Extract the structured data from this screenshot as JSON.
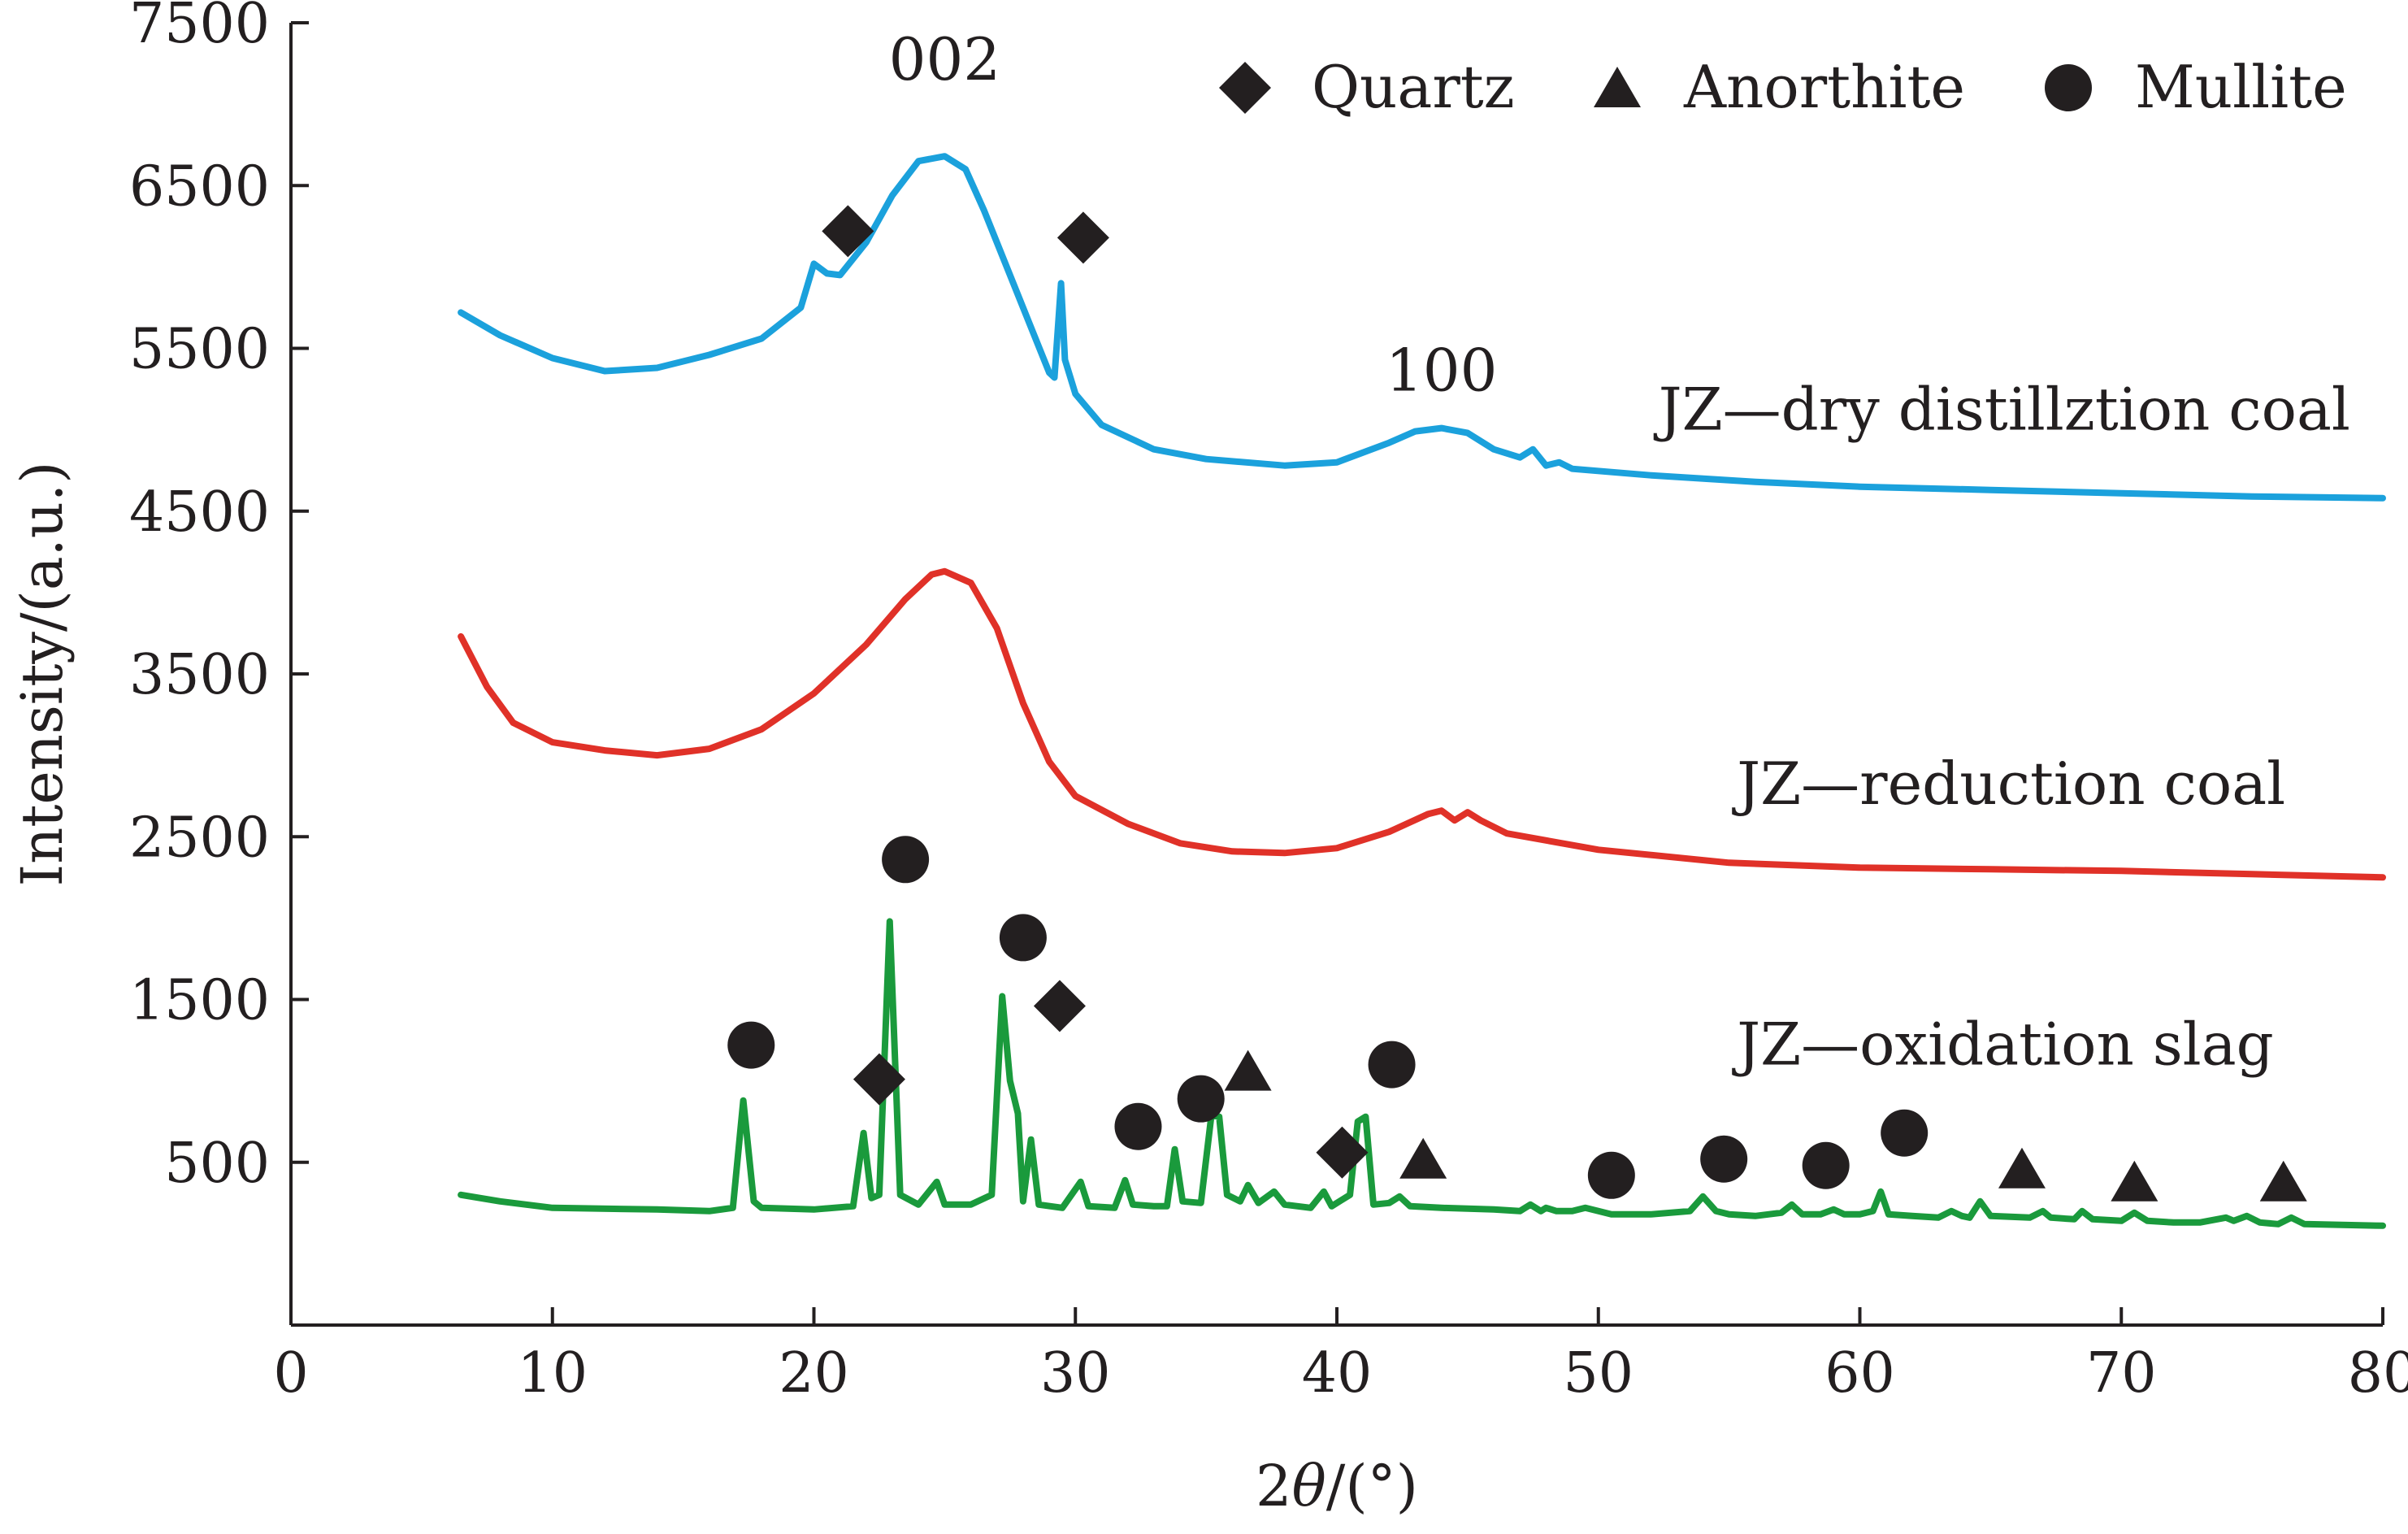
{
  "chart_data": {
    "type": "line",
    "title": "",
    "xlabel": "2θ/(°)",
    "ylabel": "Intensity/(a.u.)",
    "xlim": [
      0,
      80
    ],
    "ylim": [
      -500,
      7500
    ],
    "x_ticks": [
      0,
      10,
      20,
      30,
      40,
      50,
      60,
      70,
      80
    ],
    "y_ticks": [
      500,
      1500,
      2500,
      3500,
      4500,
      5500,
      6500,
      7500
    ],
    "grid": false,
    "legend": {
      "position": "top-right",
      "entries": [
        {
          "marker": "diamond",
          "label": "Quartz"
        },
        {
          "marker": "triangle",
          "label": "Anorthite"
        },
        {
          "marker": "circle",
          "label": "Mullite"
        }
      ]
    },
    "peak_labels": [
      {
        "text": "002",
        "x": 25,
        "y": 7150
      },
      {
        "text": "100",
        "x": 44,
        "y": 5240
      }
    ],
    "series": [
      {
        "name": "JZ—dry distillztion coal",
        "label": "JZ—dry distillztion coal",
        "label_pos": {
          "x": 52.3,
          "y": 5000
        },
        "color": "#1ba1dc",
        "points": [
          [
            6.5,
            5720
          ],
          [
            8,
            5580
          ],
          [
            10,
            5440
          ],
          [
            12,
            5360
          ],
          [
            14,
            5380
          ],
          [
            16,
            5460
          ],
          [
            18,
            5560
          ],
          [
            19.5,
            5750
          ],
          [
            20,
            6020
          ],
          [
            20.5,
            5960
          ],
          [
            21,
            5950
          ],
          [
            22,
            6150
          ],
          [
            23,
            6440
          ],
          [
            24,
            6650
          ],
          [
            25,
            6680
          ],
          [
            25.8,
            6600
          ],
          [
            26.5,
            6350
          ],
          [
            27.5,
            5950
          ],
          [
            28.5,
            5550
          ],
          [
            29,
            5350
          ],
          [
            29.2,
            5320
          ],
          [
            29.45,
            5900
          ],
          [
            29.6,
            5430
          ],
          [
            30,
            5220
          ],
          [
            31,
            5030
          ],
          [
            33,
            4880
          ],
          [
            35,
            4820
          ],
          [
            38,
            4780
          ],
          [
            40,
            4800
          ],
          [
            42,
            4920
          ],
          [
            43,
            4990
          ],
          [
            44,
            5010
          ],
          [
            45,
            4980
          ],
          [
            46,
            4880
          ],
          [
            47,
            4830
          ],
          [
            47.5,
            4880
          ],
          [
            48,
            4780
          ],
          [
            48.5,
            4800
          ],
          [
            49,
            4760
          ],
          [
            52,
            4720
          ],
          [
            56,
            4680
          ],
          [
            60,
            4650
          ],
          [
            65,
            4630
          ],
          [
            70,
            4610
          ],
          [
            75,
            4590
          ],
          [
            80,
            4580
          ]
        ],
        "markers": [
          {
            "type": "diamond",
            "x": 21.3,
            "y": 6220
          },
          {
            "type": "diamond",
            "x": 30.3,
            "y": 6180
          }
        ]
      },
      {
        "name": "JZ—reduction coal",
        "label": "JZ—reduction coal",
        "label_pos": {
          "x": 55.3,
          "y": 2700
        },
        "color": "#e03128",
        "points": [
          [
            6.5,
            3730
          ],
          [
            7.5,
            3420
          ],
          [
            8.5,
            3200
          ],
          [
            10,
            3080
          ],
          [
            12,
            3030
          ],
          [
            14,
            3000
          ],
          [
            16,
            3040
          ],
          [
            18,
            3160
          ],
          [
            20,
            3380
          ],
          [
            22,
            3680
          ],
          [
            23.5,
            3960
          ],
          [
            24.5,
            4110
          ],
          [
            25,
            4130
          ],
          [
            26,
            4060
          ],
          [
            27,
            3780
          ],
          [
            28,
            3320
          ],
          [
            29,
            2960
          ],
          [
            30,
            2750
          ],
          [
            32,
            2580
          ],
          [
            34,
            2460
          ],
          [
            36,
            2410
          ],
          [
            38,
            2400
          ],
          [
            40,
            2430
          ],
          [
            42,
            2530
          ],
          [
            43.5,
            2640
          ],
          [
            44,
            2660
          ],
          [
            44.5,
            2600
          ],
          [
            45,
            2650
          ],
          [
            45.5,
            2600
          ],
          [
            46.5,
            2520
          ],
          [
            50,
            2420
          ],
          [
            55,
            2340
          ],
          [
            60,
            2310
          ],
          [
            65,
            2300
          ],
          [
            70,
            2290
          ],
          [
            75,
            2270
          ],
          [
            80,
            2250
          ]
        ],
        "markers": []
      },
      {
        "name": "JZ—oxidation slag",
        "label": "JZ—oxidation slag",
        "label_pos": {
          "x": 55.3,
          "y": 1100
        },
        "color": "#1a9a3c",
        "points": [
          [
            6.5,
            300
          ],
          [
            8,
            260
          ],
          [
            10,
            220
          ],
          [
            14,
            210
          ],
          [
            16,
            200
          ],
          [
            16.9,
            220
          ],
          [
            17.3,
            880
          ],
          [
            17.7,
            260
          ],
          [
            18,
            220
          ],
          [
            20,
            210
          ],
          [
            21.5,
            230
          ],
          [
            21.9,
            680
          ],
          [
            22.2,
            280
          ],
          [
            22.5,
            300
          ],
          [
            22.9,
            1980
          ],
          [
            23.3,
            300
          ],
          [
            24,
            240
          ],
          [
            24.7,
            380
          ],
          [
            25,
            240
          ],
          [
            26,
            240
          ],
          [
            26.8,
            300
          ],
          [
            27.2,
            1520
          ],
          [
            27.5,
            1000
          ],
          [
            27.8,
            800
          ],
          [
            28,
            260
          ],
          [
            28.3,
            640
          ],
          [
            28.6,
            240
          ],
          [
            29.5,
            220
          ],
          [
            30.2,
            380
          ],
          [
            30.5,
            230
          ],
          [
            31.5,
            220
          ],
          [
            31.9,
            390
          ],
          [
            32.2,
            240
          ],
          [
            33,
            230
          ],
          [
            33.5,
            230
          ],
          [
            33.8,
            580
          ],
          [
            34.1,
            260
          ],
          [
            34.8,
            250
          ],
          [
            35.2,
            790
          ],
          [
            35.5,
            780
          ],
          [
            35.8,
            300
          ],
          [
            36.3,
            260
          ],
          [
            36.6,
            360
          ],
          [
            37,
            250
          ],
          [
            37.6,
            320
          ],
          [
            38,
            240
          ],
          [
            39,
            220
          ],
          [
            39.5,
            320
          ],
          [
            39.8,
            230
          ],
          [
            40.5,
            300
          ],
          [
            40.8,
            750
          ],
          [
            41.1,
            780
          ],
          [
            41.4,
            240
          ],
          [
            42,
            250
          ],
          [
            42.4,
            290
          ],
          [
            42.8,
            230
          ],
          [
            44,
            220
          ],
          [
            46,
            210
          ],
          [
            47,
            200
          ],
          [
            47.4,
            240
          ],
          [
            47.8,
            200
          ],
          [
            48,
            220
          ],
          [
            48.4,
            200
          ],
          [
            49,
            200
          ],
          [
            49.5,
            220
          ],
          [
            50,
            200
          ],
          [
            50.5,
            180
          ],
          [
            52,
            180
          ],
          [
            53.5,
            200
          ],
          [
            54,
            290
          ],
          [
            54.5,
            200
          ],
          [
            55,
            180
          ],
          [
            56,
            170
          ],
          [
            57,
            190
          ],
          [
            57.4,
            240
          ],
          [
            57.8,
            180
          ],
          [
            58.5,
            180
          ],
          [
            59,
            210
          ],
          [
            59.4,
            180
          ],
          [
            60,
            180
          ],
          [
            60.5,
            200
          ],
          [
            60.8,
            320
          ],
          [
            61.1,
            180
          ],
          [
            62,
            170
          ],
          [
            63,
            160
          ],
          [
            63.5,
            200
          ],
          [
            63.9,
            170
          ],
          [
            64.2,
            160
          ],
          [
            64.6,
            260
          ],
          [
            65,
            170
          ],
          [
            66.5,
            160
          ],
          [
            67,
            200
          ],
          [
            67.3,
            160
          ],
          [
            68.2,
            150
          ],
          [
            68.5,
            200
          ],
          [
            68.9,
            150
          ],
          [
            70,
            140
          ],
          [
            70.5,
            190
          ],
          [
            71,
            140
          ],
          [
            72,
            130
          ],
          [
            73,
            130
          ],
          [
            74,
            160
          ],
          [
            74.3,
            140
          ],
          [
            74.8,
            170
          ],
          [
            75.3,
            130
          ],
          [
            76,
            120
          ],
          [
            76.5,
            160
          ],
          [
            77,
            120
          ],
          [
            80,
            110
          ]
        ],
        "markers": [
          {
            "type": "circle",
            "x": 17.6,
            "y": 1220
          },
          {
            "type": "diamond",
            "x": 22.5,
            "y": 1010
          },
          {
            "type": "circle",
            "x": 23.5,
            "y": 2360
          },
          {
            "type": "circle",
            "x": 28.0,
            "y": 1880
          },
          {
            "type": "diamond",
            "x": 29.4,
            "y": 1460
          },
          {
            "type": "circle",
            "x": 32.4,
            "y": 720
          },
          {
            "type": "circle",
            "x": 34.8,
            "y": 890
          },
          {
            "type": "triangle",
            "x": 36.6,
            "y": 1060
          },
          {
            "type": "diamond",
            "x": 40.2,
            "y": 560
          },
          {
            "type": "circle",
            "x": 42.1,
            "y": 1100
          },
          {
            "type": "triangle",
            "x": 43.3,
            "y": 520
          },
          {
            "type": "circle",
            "x": 50.5,
            "y": 420
          },
          {
            "type": "circle",
            "x": 54.8,
            "y": 520
          },
          {
            "type": "circle",
            "x": 58.7,
            "y": 480
          },
          {
            "type": "circle",
            "x": 61.7,
            "y": 680
          },
          {
            "type": "triangle",
            "x": 66.2,
            "y": 460
          },
          {
            "type": "triangle",
            "x": 70.5,
            "y": 380
          },
          {
            "type": "triangle",
            "x": 76.2,
            "y": 380
          }
        ]
      }
    ]
  }
}
